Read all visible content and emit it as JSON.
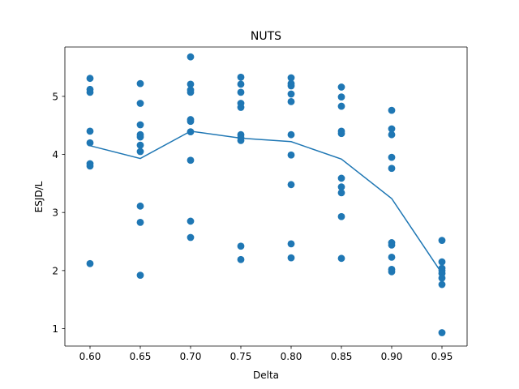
{
  "chart_data": {
    "type": "scatter",
    "title": "NUTS",
    "xlabel": "Delta",
    "ylabel": "ESJD/L",
    "xlim": [
      0.575,
      0.975
    ],
    "ylim": [
      0.7,
      5.85
    ],
    "xticks": [
      0.6,
      0.65,
      0.7,
      0.75,
      0.8,
      0.85,
      0.9,
      0.95
    ],
    "xtick_labels": [
      "0.60",
      "0.65",
      "0.70",
      "0.75",
      "0.80",
      "0.85",
      "0.90",
      "0.95"
    ],
    "yticks": [
      1,
      2,
      3,
      4,
      5
    ],
    "ytick_labels": [
      "1",
      "2",
      "3",
      "4",
      "5"
    ],
    "grid": false,
    "color": "#1f77b4",
    "series": [
      {
        "kind": "scatter",
        "points": [
          [
            0.6,
            5.31
          ],
          [
            0.6,
            5.12
          ],
          [
            0.6,
            5.07
          ],
          [
            0.6,
            4.4
          ],
          [
            0.6,
            4.2
          ],
          [
            0.6,
            3.84
          ],
          [
            0.6,
            3.8
          ],
          [
            0.6,
            2.12
          ],
          [
            0.65,
            5.22
          ],
          [
            0.65,
            4.88
          ],
          [
            0.65,
            4.51
          ],
          [
            0.65,
            4.34
          ],
          [
            0.65,
            4.3
          ],
          [
            0.65,
            4.16
          ],
          [
            0.65,
            4.05
          ],
          [
            0.65,
            3.11
          ],
          [
            0.65,
            2.83
          ],
          [
            0.65,
            1.92
          ],
          [
            0.7,
            5.68
          ],
          [
            0.7,
            5.21
          ],
          [
            0.7,
            5.11
          ],
          [
            0.7,
            5.07
          ],
          [
            0.7,
            4.6
          ],
          [
            0.7,
            4.57
          ],
          [
            0.7,
            4.39
          ],
          [
            0.7,
            3.9
          ],
          [
            0.7,
            2.85
          ],
          [
            0.7,
            2.57
          ],
          [
            0.75,
            5.33
          ],
          [
            0.75,
            5.21
          ],
          [
            0.75,
            5.07
          ],
          [
            0.75,
            4.88
          ],
          [
            0.75,
            4.81
          ],
          [
            0.75,
            4.34
          ],
          [
            0.75,
            4.29
          ],
          [
            0.75,
            4.24
          ],
          [
            0.75,
            2.42
          ],
          [
            0.75,
            2.19
          ],
          [
            0.8,
            5.32
          ],
          [
            0.8,
            5.22
          ],
          [
            0.8,
            5.18
          ],
          [
            0.8,
            5.04
          ],
          [
            0.8,
            4.91
          ],
          [
            0.8,
            4.34
          ],
          [
            0.8,
            3.99
          ],
          [
            0.8,
            3.48
          ],
          [
            0.8,
            2.46
          ],
          [
            0.8,
            2.22
          ],
          [
            0.85,
            5.16
          ],
          [
            0.85,
            4.99
          ],
          [
            0.85,
            4.83
          ],
          [
            0.85,
            4.4
          ],
          [
            0.85,
            4.36
          ],
          [
            0.85,
            3.59
          ],
          [
            0.85,
            3.44
          ],
          [
            0.85,
            3.34
          ],
          [
            0.85,
            2.93
          ],
          [
            0.85,
            2.21
          ],
          [
            0.9,
            4.76
          ],
          [
            0.9,
            4.44
          ],
          [
            0.9,
            4.34
          ],
          [
            0.9,
            3.95
          ],
          [
            0.9,
            3.76
          ],
          [
            0.9,
            2.48
          ],
          [
            0.9,
            2.44
          ],
          [
            0.9,
            2.23
          ],
          [
            0.9,
            2.02
          ],
          [
            0.9,
            1.98
          ],
          [
            0.95,
            2.52
          ],
          [
            0.95,
            2.15
          ],
          [
            0.95,
            2.04
          ],
          [
            0.95,
            2.0
          ],
          [
            0.95,
            1.95
          ],
          [
            0.95,
            1.87
          ],
          [
            0.95,
            1.76
          ],
          [
            0.95,
            0.93
          ]
        ]
      },
      {
        "kind": "line",
        "points": [
          [
            0.6,
            4.15
          ],
          [
            0.65,
            3.93
          ],
          [
            0.7,
            4.4
          ],
          [
            0.75,
            4.28
          ],
          [
            0.8,
            4.22
          ],
          [
            0.85,
            3.92
          ],
          [
            0.9,
            3.24
          ],
          [
            0.95,
            1.95
          ]
        ]
      }
    ]
  }
}
